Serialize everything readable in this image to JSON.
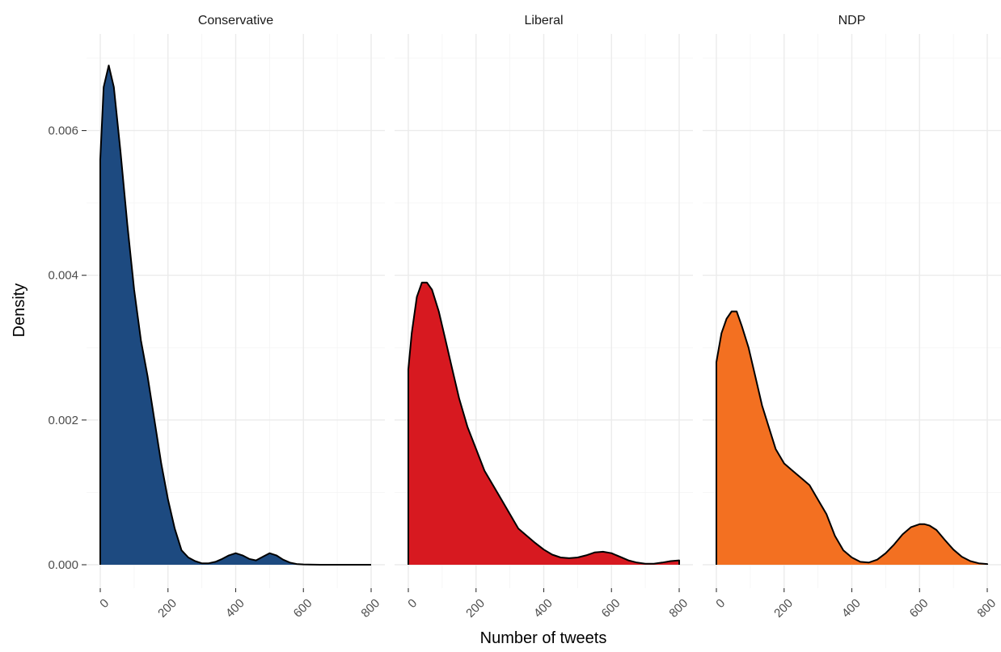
{
  "chart_data": {
    "type": "area",
    "subtype": "faceted-density",
    "xlabel": "Number of tweets",
    "ylabel": "Density",
    "xlim": [
      0,
      800
    ],
    "ylim": [
      0,
      0.007
    ],
    "x_ticks": [
      "0",
      "200",
      "400",
      "600",
      "800"
    ],
    "y_ticks": [
      "0.000",
      "0.002",
      "0.004",
      "0.006"
    ],
    "grid": true,
    "legend": "none",
    "panels": [
      {
        "label": "Conservative",
        "color": "#1D4A80",
        "x": [
          0,
          10,
          25,
          40,
          60,
          80,
          100,
          120,
          140,
          160,
          180,
          200,
          220,
          240,
          260,
          280,
          300,
          320,
          340,
          360,
          380,
          400,
          420,
          440,
          460,
          480,
          500,
          520,
          540,
          560,
          580,
          600,
          650,
          700,
          750,
          800
        ],
        "y": [
          0.0056,
          0.0066,
          0.0069,
          0.0066,
          0.0057,
          0.0047,
          0.0038,
          0.0031,
          0.0026,
          0.002,
          0.0014,
          0.0009,
          0.0005,
          0.0002,
          0.0001,
          5e-05,
          2e-05,
          2e-05,
          4e-05,
          8e-05,
          0.00013,
          0.00016,
          0.00013,
          8e-05,
          6e-05,
          0.00011,
          0.00016,
          0.00013,
          7e-05,
          3e-05,
          1e-05,
          5e-06,
          0.0,
          0.0,
          0.0,
          0.0
        ]
      },
      {
        "label": "Liberal",
        "color": "#D71920",
        "x": [
          0,
          10,
          25,
          40,
          55,
          70,
          90,
          110,
          130,
          150,
          175,
          200,
          225,
          250,
          275,
          300,
          325,
          350,
          375,
          400,
          425,
          450,
          475,
          500,
          525,
          550,
          575,
          600,
          625,
          650,
          675,
          700,
          725,
          750,
          775,
          800
        ],
        "y": [
          0.0027,
          0.0032,
          0.0037,
          0.0039,
          0.0039,
          0.0038,
          0.0035,
          0.0031,
          0.0027,
          0.0023,
          0.0019,
          0.0016,
          0.0013,
          0.0011,
          0.0009,
          0.0007,
          0.0005,
          0.0004,
          0.0003,
          0.00021,
          0.00014,
          0.0001,
          9e-05,
          0.0001,
          0.00013,
          0.00017,
          0.00018,
          0.00016,
          0.00011,
          6e-05,
          3e-05,
          1.5e-05,
          1.5e-05,
          3e-05,
          5e-05,
          6e-05
        ]
      },
      {
        "label": "NDP",
        "color": "#F37021",
        "x": [
          0,
          15,
          30,
          45,
          60,
          75,
          95,
          115,
          135,
          155,
          175,
          200,
          225,
          250,
          275,
          300,
          325,
          350,
          375,
          400,
          425,
          450,
          475,
          500,
          525,
          550,
          575,
          600,
          615,
          630,
          650,
          675,
          700,
          725,
          750,
          775,
          800
        ],
        "y": [
          0.0028,
          0.0032,
          0.0034,
          0.0035,
          0.0035,
          0.0033,
          0.003,
          0.0026,
          0.0022,
          0.0019,
          0.0016,
          0.0014,
          0.0013,
          0.0012,
          0.0011,
          0.0009,
          0.0007,
          0.0004,
          0.0002,
          0.0001,
          4e-05,
          3e-05,
          7e-05,
          0.00016,
          0.00028,
          0.00042,
          0.00052,
          0.00056,
          0.00056,
          0.00054,
          0.00048,
          0.00034,
          0.00021,
          0.00011,
          5e-05,
          2e-05,
          1e-05
        ]
      }
    ]
  }
}
